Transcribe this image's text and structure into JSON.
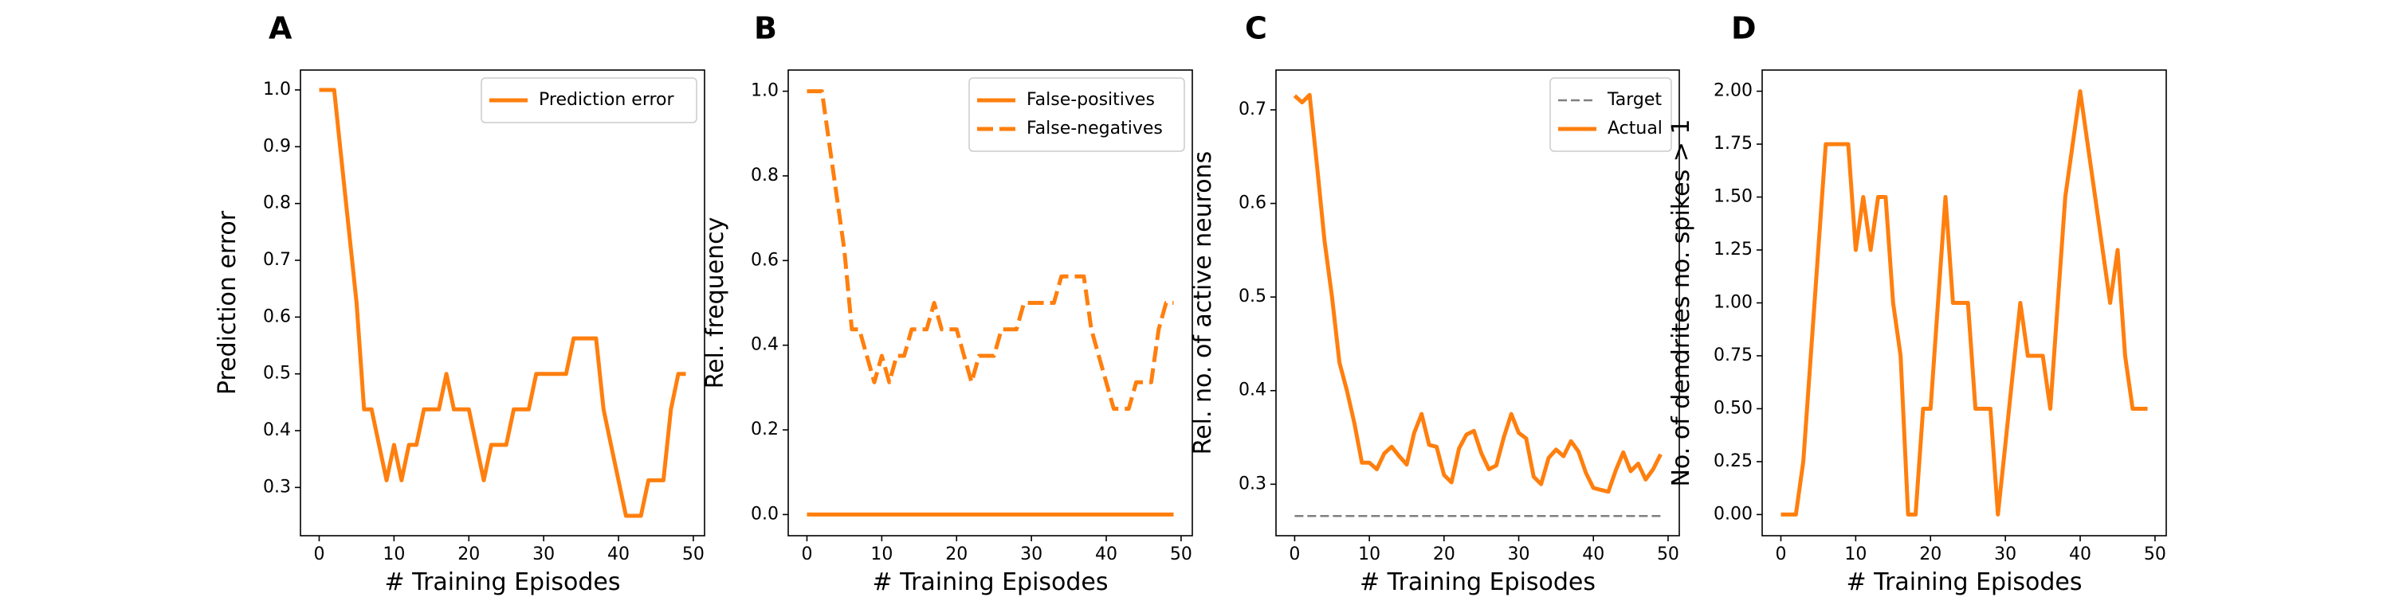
{
  "colors": {
    "series": "#ff7f0e",
    "target": "#7f7f7f",
    "axis": "#000000"
  },
  "chart_data": [
    {
      "panel": "A",
      "type": "line",
      "xlabel": "# Training Episodes",
      "ylabel": "Prediction error",
      "xlim": [
        -2.5,
        51.5
      ],
      "ylim": [
        0.215,
        1.035
      ],
      "xticks": [
        0,
        10,
        20,
        30,
        40,
        50
      ],
      "yticks": [
        0.3,
        0.4,
        0.5,
        0.6,
        0.7,
        0.8,
        0.9,
        1.0
      ],
      "ytick_labels": [
        "0.3",
        "0.4",
        "0.5",
        "0.6",
        "0.7",
        "0.8",
        "0.9",
        "1.0"
      ],
      "legend": "top-right",
      "series": [
        {
          "name": "Prediction error",
          "style": "solid",
          "x": [
            0,
            1,
            2,
            3,
            4,
            5,
            6,
            7,
            8,
            9,
            10,
            11,
            12,
            13,
            14,
            15,
            16,
            17,
            18,
            19,
            20,
            21,
            22,
            23,
            24,
            25,
            26,
            27,
            28,
            29,
            30,
            31,
            32,
            33,
            34,
            35,
            36,
            37,
            38,
            39,
            40,
            41,
            42,
            43,
            44,
            45,
            46,
            47,
            48,
            49
          ],
          "y": [
            1.0,
            1.0,
            1.0,
            0.875,
            0.75,
            0.625,
            0.4375,
            0.4375,
            0.375,
            0.3125,
            0.375,
            0.3125,
            0.375,
            0.375,
            0.4375,
            0.4375,
            0.4375,
            0.5,
            0.4375,
            0.4375,
            0.4375,
            0.375,
            0.3125,
            0.375,
            0.375,
            0.375,
            0.4375,
            0.4375,
            0.4375,
            0.5,
            0.5,
            0.5,
            0.5,
            0.5,
            0.5625,
            0.5625,
            0.5625,
            0.5625,
            0.4375,
            0.375,
            0.3125,
            0.25,
            0.25,
            0.25,
            0.3125,
            0.3125,
            0.3125,
            0.4375,
            0.5,
            0.5
          ]
        }
      ]
    },
    {
      "panel": "B",
      "type": "line",
      "xlabel": "# Training Episodes",
      "ylabel": "Rel. frequency",
      "xlim": [
        -2.5,
        51.5
      ],
      "ylim": [
        -0.05,
        1.05
      ],
      "xticks": [
        0,
        10,
        20,
        30,
        40,
        50
      ],
      "yticks": [
        0.0,
        0.2,
        0.4,
        0.6,
        0.8,
        1.0
      ],
      "ytick_labels": [
        "0.0",
        "0.2",
        "0.4",
        "0.6",
        "0.8",
        "1.0"
      ],
      "legend": "top-right",
      "series": [
        {
          "name": "False-positives",
          "style": "solid",
          "x": [
            0,
            49
          ],
          "y": [
            0.0,
            0.0
          ]
        },
        {
          "name": "False-negatives",
          "style": "dashed",
          "x": [
            0,
            1,
            2,
            3,
            4,
            5,
            6,
            7,
            8,
            9,
            10,
            11,
            12,
            13,
            14,
            15,
            16,
            17,
            18,
            19,
            20,
            21,
            22,
            23,
            24,
            25,
            26,
            27,
            28,
            29,
            30,
            31,
            32,
            33,
            34,
            35,
            36,
            37,
            38,
            39,
            40,
            41,
            42,
            43,
            44,
            45,
            46,
            47,
            48,
            49
          ],
          "y": [
            1.0,
            1.0,
            1.0,
            0.875,
            0.75,
            0.625,
            0.4375,
            0.4375,
            0.375,
            0.3125,
            0.375,
            0.3125,
            0.375,
            0.375,
            0.4375,
            0.4375,
            0.4375,
            0.5,
            0.4375,
            0.4375,
            0.4375,
            0.375,
            0.3125,
            0.375,
            0.375,
            0.375,
            0.4375,
            0.4375,
            0.4375,
            0.5,
            0.5,
            0.5,
            0.5,
            0.5,
            0.5625,
            0.5625,
            0.5625,
            0.5625,
            0.4375,
            0.375,
            0.3125,
            0.25,
            0.25,
            0.25,
            0.3125,
            0.3125,
            0.3125,
            0.4375,
            0.5,
            0.5
          ]
        }
      ]
    },
    {
      "panel": "C",
      "type": "line",
      "xlabel": "# Training Episodes",
      "ylabel": "Rel. no. of active neurons",
      "xlim": [
        -2.5,
        51.5
      ],
      "ylim": [
        0.245,
        0.7425
      ],
      "xticks": [
        0,
        10,
        20,
        30,
        40,
        50
      ],
      "yticks": [
        0.3,
        0.4,
        0.5,
        0.6,
        0.7
      ],
      "ytick_labels": [
        "0.3",
        "0.4",
        "0.5",
        "0.6",
        "0.7"
      ],
      "legend": "top-right",
      "series": [
        {
          "name": "Target",
          "style": "dashed-thin",
          "x": [
            0,
            49
          ],
          "y": [
            0.266,
            0.266
          ]
        },
        {
          "name": "Actual",
          "style": "solid",
          "x": [
            0,
            1,
            2,
            3,
            4,
            5,
            6,
            7,
            8,
            9,
            10,
            11,
            12,
            13,
            14,
            15,
            16,
            17,
            18,
            19,
            20,
            21,
            22,
            23,
            24,
            25,
            26,
            27,
            28,
            29,
            30,
            31,
            32,
            33,
            34,
            35,
            36,
            37,
            38,
            39,
            40,
            41,
            42,
            43,
            44,
            45,
            46,
            47,
            48,
            49
          ],
          "y": [
            0.715,
            0.708,
            0.716,
            0.64,
            0.56,
            0.5,
            0.43,
            0.4,
            0.365,
            0.323,
            0.323,
            0.316,
            0.333,
            0.34,
            0.33,
            0.321,
            0.355,
            0.375,
            0.342,
            0.34,
            0.31,
            0.302,
            0.338,
            0.353,
            0.357,
            0.333,
            0.316,
            0.32,
            0.35,
            0.375,
            0.355,
            0.349,
            0.308,
            0.3,
            0.328,
            0.337,
            0.33,
            0.346,
            0.335,
            0.312,
            0.296,
            0.294,
            0.292,
            0.315,
            0.334,
            0.314,
            0.322,
            0.305,
            0.316,
            0.332
          ]
        }
      ]
    },
    {
      "panel": "D",
      "type": "line",
      "xlabel": "# Training Episodes",
      "ylabel": "No. of dendrites no. spikes > 1",
      "xlim": [
        -2.5,
        51.5
      ],
      "ylim": [
        -0.1,
        2.1
      ],
      "xticks": [
        0,
        10,
        20,
        30,
        40,
        50
      ],
      "yticks": [
        0.0,
        0.25,
        0.5,
        0.75,
        1.0,
        1.25,
        1.5,
        1.75,
        2.0
      ],
      "ytick_labels": [
        "0.00",
        "0.25",
        "0.50",
        "0.75",
        "1.00",
        "1.25",
        "1.50",
        "1.75",
        "2.00"
      ],
      "legend": "none",
      "series": [
        {
          "name": "",
          "style": "solid",
          "x": [
            0,
            1,
            2,
            3,
            4,
            5,
            6,
            7,
            8,
            9,
            10,
            11,
            12,
            13,
            14,
            15,
            16,
            17,
            18,
            19,
            20,
            21,
            22,
            23,
            24,
            25,
            26,
            27,
            28,
            29,
            30,
            31,
            32,
            33,
            34,
            35,
            36,
            37,
            38,
            39,
            40,
            41,
            42,
            43,
            44,
            45,
            46,
            47,
            48,
            49
          ],
          "y": [
            0.0,
            0.0,
            0.0,
            0.25,
            0.75,
            1.25,
            1.75,
            1.75,
            1.75,
            1.75,
            1.25,
            1.5,
            1.25,
            1.5,
            1.5,
            1.0,
            0.75,
            0.0,
            0.0,
            0.5,
            0.5,
            1.0,
            1.5,
            1.0,
            1.0,
            1.0,
            0.5,
            0.5,
            0.5,
            0.0,
            0.33,
            0.67,
            1.0,
            0.75,
            0.75,
            0.75,
            0.5,
            1.0,
            1.5,
            1.75,
            2.0,
            1.75,
            1.5,
            1.25,
            1.0,
            1.25,
            0.75,
            0.5,
            0.5,
            0.5
          ]
        }
      ]
    }
  ]
}
